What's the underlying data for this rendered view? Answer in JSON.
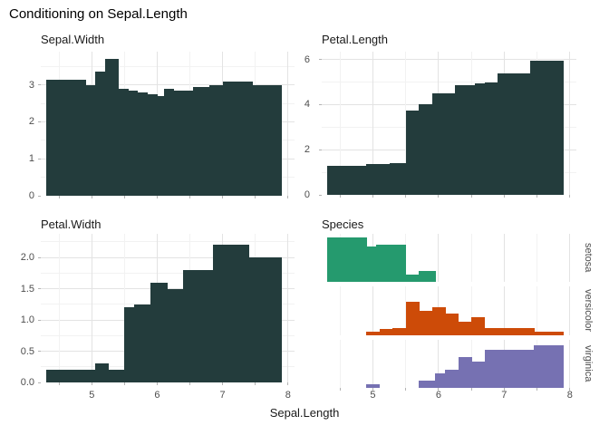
{
  "title": "Conditioning on Sepal.Length",
  "x_axis": {
    "label": "Sepal.Length",
    "domain": [
      4.22,
      8.1
    ],
    "major_ticks": [
      5,
      6,
      7,
      8
    ],
    "tick_labels": [
      "5",
      "6",
      "7",
      "8"
    ],
    "minor_ticks": [
      4.5,
      5.5,
      6.5,
      7.5
    ]
  },
  "style": {
    "bar_color": "#233c3c",
    "setosa_color": "#259a6e",
    "versicolor_color": "#cd4b08",
    "virginica_color": "#7671b2",
    "grid_major": "#e3e3e3",
    "grid_minor": "#f2f2f2",
    "tick_color": "#b3b3b3",
    "label_color": "#4d4d4d"
  },
  "chart_data": [
    {
      "type": "area",
      "title": "Sepal.Width",
      "xlabel": "Sepal.Length",
      "xlim": [
        4.22,
        8.1
      ],
      "ylim": [
        0,
        3.9
      ],
      "grid": true,
      "ytick_values": [
        0,
        1,
        2,
        3
      ],
      "ytick_labels": [
        "0",
        "1",
        "2",
        "3"
      ],
      "yminor": [
        0.5,
        1.5,
        2.5,
        3.5
      ],
      "segments": [
        [
          4.3,
          4.9,
          3.15
        ],
        [
          4.9,
          5.05,
          3.0
        ],
        [
          5.05,
          5.2,
          3.35
        ],
        [
          5.2,
          5.4,
          3.7
        ],
        [
          5.4,
          5.55,
          2.9
        ],
        [
          5.55,
          5.7,
          2.85
        ],
        [
          5.7,
          5.85,
          2.8
        ],
        [
          5.85,
          6.0,
          2.75
        ],
        [
          6.0,
          6.1,
          2.7
        ],
        [
          6.1,
          6.25,
          2.9
        ],
        [
          6.25,
          6.55,
          2.85
        ],
        [
          6.55,
          6.8,
          2.95
        ],
        [
          6.8,
          7.0,
          3.0
        ],
        [
          7.0,
          7.45,
          3.08
        ],
        [
          7.45,
          7.9,
          3.0
        ]
      ]
    },
    {
      "type": "area",
      "title": "Petal.Length",
      "xlabel": "Sepal.Length",
      "xlim": [
        4.22,
        8.1
      ],
      "ylim": [
        0,
        6.35
      ],
      "grid": true,
      "ytick_values": [
        0,
        2,
        4,
        6
      ],
      "ytick_labels": [
        "0",
        "2",
        "4",
        "6"
      ],
      "yminor": [
        1,
        3,
        5
      ],
      "segments": [
        [
          4.3,
          4.9,
          1.3
        ],
        [
          4.9,
          5.25,
          1.35
        ],
        [
          5.25,
          5.5,
          1.4
        ],
        [
          5.5,
          5.7,
          3.75
        ],
        [
          5.7,
          5.9,
          4.0
        ],
        [
          5.9,
          6.25,
          4.5
        ],
        [
          6.25,
          6.55,
          4.85
        ],
        [
          6.55,
          6.7,
          4.95
        ],
        [
          6.7,
          6.9,
          5.0
        ],
        [
          6.9,
          7.4,
          5.4
        ],
        [
          7.4,
          7.9,
          5.95
        ]
      ]
    },
    {
      "type": "area",
      "title": "Petal.Width",
      "xlabel": "Sepal.Length",
      "xlim": [
        4.22,
        8.1
      ],
      "ylim": [
        0,
        2.38
      ],
      "grid": true,
      "ytick_values": [
        0,
        0.5,
        1,
        1.5,
        2
      ],
      "ytick_labels": [
        "0.0",
        "0.5",
        "1.0",
        "1.5",
        "2.0"
      ],
      "yminor": [
        0.25,
        0.75,
        1.25,
        1.75,
        2.25
      ],
      "segments": [
        [
          4.3,
          5.05,
          0.2
        ],
        [
          5.05,
          5.25,
          0.3
        ],
        [
          5.25,
          5.5,
          0.2
        ],
        [
          5.5,
          5.65,
          1.2
        ],
        [
          5.65,
          5.9,
          1.25
        ],
        [
          5.9,
          6.15,
          1.6
        ],
        [
          6.15,
          6.4,
          1.5
        ],
        [
          6.4,
          6.85,
          1.8
        ],
        [
          6.85,
          7.4,
          2.2
        ],
        [
          7.4,
          7.9,
          2.0
        ]
      ]
    },
    {
      "type": "faceted-histogram",
      "title": "Species",
      "xlabel": "Sepal.Length",
      "xlim": [
        4.22,
        8.1
      ],
      "ylim": [
        0,
        1
      ],
      "note": "bar heights are fractions of each facet strip height",
      "facets": [
        {
          "name": "setosa",
          "segments": [
            [
              4.3,
              4.9,
              0.92
            ],
            [
              4.9,
              5.05,
              0.74
            ],
            [
              5.05,
              5.5,
              0.78
            ],
            [
              5.5,
              5.7,
              0.16
            ],
            [
              5.7,
              5.95,
              0.22
            ]
          ]
        },
        {
          "name": "versicolor",
          "segments": [
            [
              4.9,
              5.1,
              0.08
            ],
            [
              5.1,
              5.3,
              0.13
            ],
            [
              5.3,
              5.5,
              0.15
            ],
            [
              5.5,
              5.7,
              0.68
            ],
            [
              5.7,
              5.9,
              0.5
            ],
            [
              5.9,
              6.1,
              0.58
            ],
            [
              6.1,
              6.3,
              0.44
            ],
            [
              6.3,
              6.5,
              0.27
            ],
            [
              6.5,
              6.7,
              0.37
            ],
            [
              6.7,
              7.45,
              0.14
            ],
            [
              7.45,
              7.9,
              0.08
            ]
          ]
        },
        {
          "name": "virginica",
          "segments": [
            [
              4.9,
              5.1,
              0.07
            ],
            [
              5.7,
              5.95,
              0.15
            ],
            [
              5.95,
              6.1,
              0.3
            ],
            [
              6.1,
              6.3,
              0.38
            ],
            [
              6.3,
              6.5,
              0.65
            ],
            [
              6.5,
              6.7,
              0.55
            ],
            [
              6.7,
              7.45,
              0.79
            ],
            [
              7.45,
              7.9,
              0.88
            ]
          ]
        }
      ]
    }
  ]
}
